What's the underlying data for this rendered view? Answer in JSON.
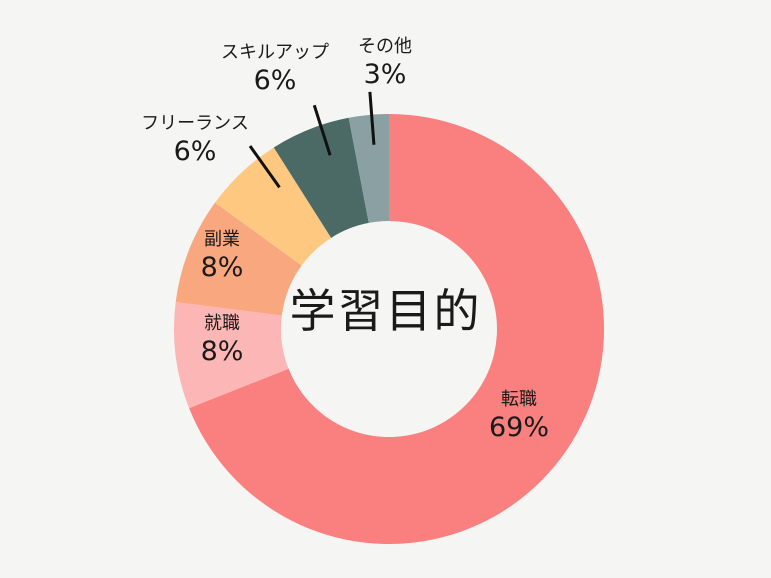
{
  "chart_data": {
    "type": "pie",
    "title": "学習目的",
    "colors": {
      "転職": "#fa7f7f",
      "就職": "#fcb6b5",
      "副業": "#f9a77e",
      "フリーランス": "#fec880",
      "スキルアップ": "#4b6a66",
      "その他": "#8aa0a3"
    },
    "slices": [
      {
        "label": "転職",
        "value": 69,
        "value_label": "69%"
      },
      {
        "label": "就職",
        "value": 8,
        "value_label": "8%"
      },
      {
        "label": "副業",
        "value": 8,
        "value_label": "8%"
      },
      {
        "label": "フリーランス",
        "value": 6,
        "value_label": "6%"
      },
      {
        "label": "スキルアップ",
        "value": 6,
        "value_label": "6%"
      },
      {
        "label": "その他",
        "value": 3,
        "value_label": "3%"
      }
    ]
  }
}
